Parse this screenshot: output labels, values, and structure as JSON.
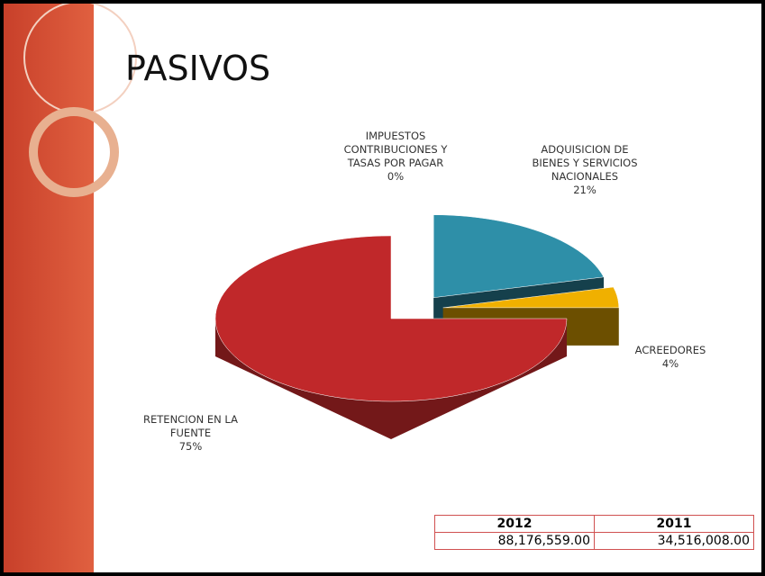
{
  "chart_data": {
    "type": "pie",
    "title": "PASIVOS",
    "categories": [
      "IMPUESTOS CONTRIBUCIONES Y TASAS POR PAGAR",
      "ADQUISICION DE BIENES Y SERVICIOS NACIONALES",
      "ACREEDORES",
      "RETENCION EN LA FUENTE"
    ],
    "values": [
      0,
      21,
      4,
      75
    ],
    "value_labels": [
      "0%",
      "21%",
      "4%",
      "75%"
    ],
    "colors": [
      "#7f7f7f",
      "#2e8fa8",
      "#f0b000",
      "#c0282a"
    ]
  },
  "table": {
    "headers": [
      "2012",
      "2011"
    ],
    "rows": [
      [
        "88,176,559.00",
        "34,516,008.00"
      ]
    ]
  }
}
